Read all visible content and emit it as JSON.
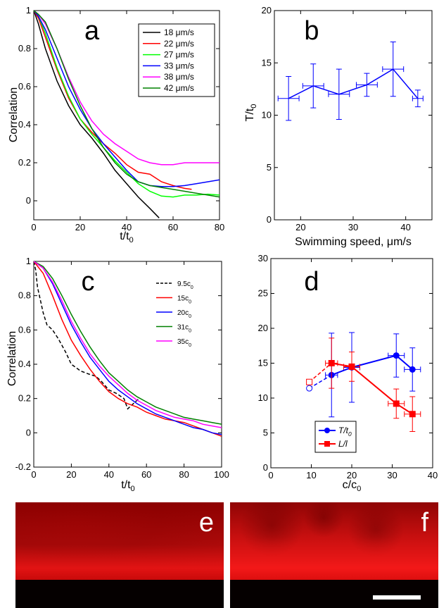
{
  "chart_data": [
    {
      "panel": "a",
      "type": "line",
      "xlabel": "t/t0",
      "ylabel": "Correlation",
      "xlim": [
        0,
        80
      ],
      "ylim": [
        -0.1,
        1
      ],
      "xticks": [
        0,
        20,
        40,
        60,
        80
      ],
      "yticks": [
        0,
        0.2,
        0.4,
        0.6,
        0.8,
        1
      ],
      "legend_position": "top-right",
      "series": [
        {
          "name": "18 μm/s",
          "color": "#000000",
          "x": [
            0,
            2,
            5,
            10,
            15,
            20,
            25,
            30,
            35,
            40,
            45,
            50,
            54
          ],
          "y": [
            1,
            0.93,
            0.8,
            0.63,
            0.5,
            0.4,
            0.33,
            0.25,
            0.16,
            0.09,
            0.02,
            -0.04,
            -0.09
          ]
        },
        {
          "name": "22 μm/s",
          "color": "#ff0000",
          "x": [
            0,
            2,
            5,
            10,
            15,
            20,
            25,
            30,
            35,
            40,
            45,
            50,
            55,
            60,
            65,
            68
          ],
          "y": [
            1,
            0.96,
            0.86,
            0.69,
            0.54,
            0.43,
            0.36,
            0.3,
            0.25,
            0.19,
            0.15,
            0.14,
            0.1,
            0.08,
            0.065,
            0.06
          ]
        },
        {
          "name": "27 μm/s",
          "color": "#00ff00",
          "x": [
            0,
            2,
            5,
            10,
            15,
            20,
            25,
            30,
            35,
            40,
            45,
            50,
            55,
            60,
            65,
            70,
            75,
            80
          ],
          "y": [
            1,
            0.97,
            0.88,
            0.7,
            0.55,
            0.43,
            0.35,
            0.28,
            0.21,
            0.15,
            0.09,
            0.05,
            0.025,
            0.02,
            0.03,
            0.03,
            0.035,
            0.03
          ]
        },
        {
          "name": "33 μm/s",
          "color": "#0000ff",
          "x": [
            0,
            2,
            5,
            10,
            15,
            20,
            25,
            30,
            35,
            40,
            45,
            50,
            55,
            60,
            65,
            70,
            75,
            80
          ],
          "y": [
            1,
            0.97,
            0.9,
            0.75,
            0.6,
            0.48,
            0.38,
            0.3,
            0.23,
            0.16,
            0.1,
            0.08,
            0.075,
            0.075,
            0.08,
            0.09,
            0.1,
            0.11
          ]
        },
        {
          "name": "38 μm/s",
          "color": "#ff00ff",
          "x": [
            0,
            2,
            5,
            10,
            15,
            20,
            25,
            30,
            35,
            40,
            45,
            50,
            55,
            60,
            65,
            70,
            75,
            80
          ],
          "y": [
            1,
            0.98,
            0.93,
            0.8,
            0.65,
            0.52,
            0.42,
            0.35,
            0.3,
            0.26,
            0.22,
            0.2,
            0.19,
            0.19,
            0.2,
            0.2,
            0.2,
            0.2
          ]
        },
        {
          "name": "42 μm/s",
          "color": "#008000",
          "x": [
            0,
            2,
            5,
            10,
            15,
            20,
            25,
            30,
            35,
            40,
            45,
            50,
            55,
            60,
            65,
            70,
            75,
            80
          ],
          "y": [
            1,
            0.98,
            0.94,
            0.8,
            0.64,
            0.5,
            0.38,
            0.28,
            0.2,
            0.14,
            0.1,
            0.08,
            0.07,
            0.06,
            0.05,
            0.04,
            0.03,
            0.02
          ]
        }
      ]
    },
    {
      "panel": "b",
      "type": "line",
      "xlabel": "Swimming speed, μm/s",
      "ylabel": "T/t0",
      "xlim": [
        15,
        45
      ],
      "ylim": [
        0,
        20
      ],
      "xticks": [
        20,
        30,
        40
      ],
      "yticks": [
        0,
        5,
        10,
        15,
        20
      ],
      "series": [
        {
          "color": "#0000ff",
          "x": [
            17.7,
            22.4,
            27.3,
            32.6,
            37.6,
            42.3
          ],
          "y": [
            11.6,
            12.8,
            12.0,
            12.9,
            14.4,
            11.6
          ],
          "yerr": [
            2.1,
            2.1,
            2.4,
            1.1,
            2.6,
            0.8
          ],
          "xerr": [
            2.0,
            2.0,
            2.0,
            2.0,
            2.0,
            1.0
          ]
        }
      ]
    },
    {
      "panel": "c",
      "type": "line",
      "xlabel": "t/t0",
      "ylabel": "Correlation",
      "xlim": [
        0,
        100
      ],
      "ylim": [
        -0.2,
        1
      ],
      "xticks": [
        0,
        20,
        40,
        60,
        80,
        100
      ],
      "yticks": [
        -0.2,
        0,
        0.2,
        0.4,
        0.6,
        0.8,
        1
      ],
      "legend_position": "top-right",
      "series": [
        {
          "name": "9.5c0",
          "color": "#000000",
          "dashed": true,
          "x": [
            0,
            1,
            2,
            3,
            5,
            7,
            10,
            13,
            17,
            20,
            25,
            30,
            33,
            36,
            40,
            44,
            48,
            50,
            52,
            54,
            56
          ],
          "y": [
            1,
            0.95,
            0.85,
            0.8,
            0.7,
            0.63,
            0.6,
            0.55,
            0.47,
            0.4,
            0.36,
            0.34,
            0.33,
            0.3,
            0.25,
            0.23,
            0.2,
            0.14,
            0.16,
            0.18,
            0.2
          ]
        },
        {
          "name": "15c0",
          "color": "#ff0000",
          "x": [
            0,
            5,
            10,
            15,
            20,
            25,
            30,
            35,
            40,
            45,
            50,
            55,
            60,
            65,
            70,
            75,
            80,
            85,
            90,
            95,
            100
          ],
          "y": [
            1,
            0.93,
            0.8,
            0.66,
            0.54,
            0.45,
            0.37,
            0.3,
            0.24,
            0.2,
            0.17,
            0.15,
            0.12,
            0.1,
            0.08,
            0.07,
            0.06,
            0.04,
            0.02,
            0,
            -0.02
          ]
        },
        {
          "name": "20c0",
          "color": "#0000ff",
          "x": [
            0,
            5,
            10,
            15,
            20,
            25,
            30,
            35,
            40,
            45,
            50,
            55,
            60,
            65,
            70,
            75,
            80,
            85,
            90,
            95,
            100
          ],
          "y": [
            1,
            0.96,
            0.87,
            0.75,
            0.63,
            0.53,
            0.44,
            0.37,
            0.3,
            0.25,
            0.21,
            0.17,
            0.14,
            0.11,
            0.09,
            0.07,
            0.05,
            0.03,
            0.02,
            0,
            -0.01
          ]
        },
        {
          "name": "31c0",
          "color": "#008000",
          "x": [
            0,
            5,
            10,
            15,
            20,
            25,
            30,
            35,
            40,
            45,
            50,
            55,
            60,
            65,
            70,
            75,
            80,
            85,
            90,
            95,
            100
          ],
          "y": [
            1,
            0.97,
            0.9,
            0.8,
            0.69,
            0.59,
            0.5,
            0.42,
            0.35,
            0.3,
            0.25,
            0.21,
            0.18,
            0.15,
            0.13,
            0.11,
            0.09,
            0.08,
            0.07,
            0.06,
            0.05
          ]
        },
        {
          "name": "35c0",
          "color": "#ff00ff",
          "x": [
            0,
            5,
            10,
            15,
            20,
            25,
            30,
            35,
            40,
            45,
            50,
            55,
            60,
            65,
            70,
            75,
            80,
            85,
            90,
            95,
            100
          ],
          "y": [
            1,
            0.96,
            0.88,
            0.77,
            0.65,
            0.55,
            0.46,
            0.39,
            0.33,
            0.28,
            0.23,
            0.19,
            0.16,
            0.13,
            0.11,
            0.09,
            0.08,
            0.07,
            0.05,
            0.04,
            0.03
          ]
        }
      ]
    },
    {
      "panel": "d",
      "type": "line",
      "xlabel": "c/c0",
      "xlim": [
        0,
        40
      ],
      "ylim": [
        0,
        30
      ],
      "xticks": [
        0,
        10,
        20,
        30,
        40
      ],
      "yticks": [
        0,
        5,
        10,
        15,
        20,
        25,
        30
      ],
      "legend_position": "bottom-left",
      "series": [
        {
          "name": "T/t0",
          "color": "#0000ff",
          "marker": "circle",
          "x": [
            9.5,
            15,
            20,
            31,
            35
          ],
          "y": [
            11.4,
            13.3,
            14.4,
            16.1,
            14.1
          ],
          "yerr": [
            0,
            6.0,
            5.0,
            3.1,
            3.1
          ],
          "xerr": [
            0,
            1.5,
            2.0,
            2.0,
            2.0
          ],
          "open_first": true
        },
        {
          "name": "L/l",
          "color": "#ff0000",
          "marker": "square",
          "x": [
            9.5,
            15,
            20,
            31,
            35
          ],
          "y": [
            12.3,
            15.0,
            14.5,
            9.2,
            7.7
          ],
          "yerr": [
            0,
            3.6,
            2.1,
            2.1,
            2.5
          ],
          "xerr": [
            0,
            1.5,
            2.0,
            2.0,
            2.0
          ],
          "open_first": true
        }
      ]
    }
  ],
  "labels": {
    "panel_a": "a",
    "panel_b": "b",
    "panel_c": "c",
    "panel_d": "d",
    "panel_e": "e",
    "panel_f": "f",
    "a_ylabel": "Correlation",
    "a_xlabel_main": "t/t",
    "a_xlabel_sub": "0",
    "b_ylabel_main": "T/t",
    "b_ylabel_sub": "0",
    "b_xlabel": "Swimming speed, μm/s",
    "c_ylabel": "Correlation",
    "c_xlabel_main": "t/t",
    "c_xlabel_sub": "0",
    "d_xlabel_main": "c/c",
    "d_xlabel_sub": "0",
    "c_legend": [
      {
        "main": "9.5c",
        "sub": "0"
      },
      {
        "main": "15c",
        "sub": "0"
      },
      {
        "main": "20c",
        "sub": "0"
      },
      {
        "main": "31c",
        "sub": "0"
      },
      {
        "main": "35c",
        "sub": "0"
      }
    ],
    "d_legend": [
      {
        "main": "T/t",
        "sub": "0"
      },
      {
        "main": "L/l",
        "sub": ""
      }
    ]
  },
  "colors": {
    "tissue_red": "#d81010",
    "tissue_dark": "#6a0505",
    "background": "#000000"
  }
}
